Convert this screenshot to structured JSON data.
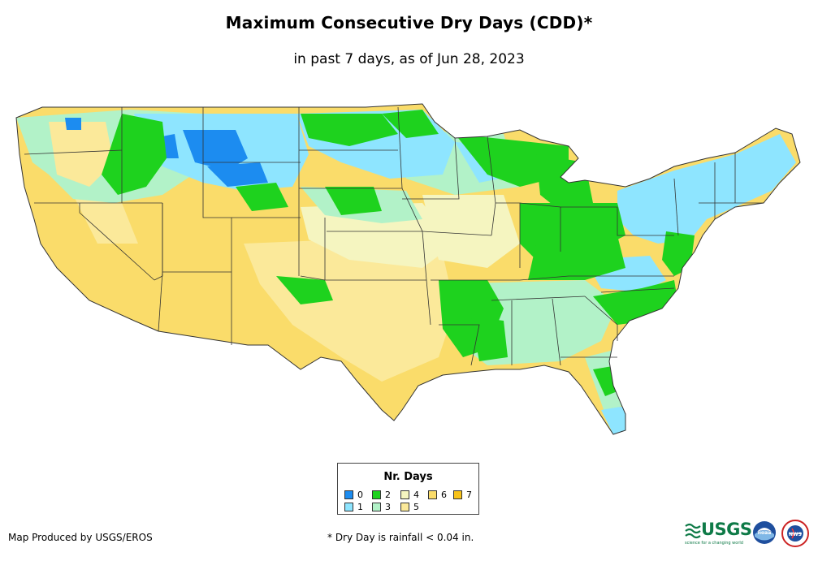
{
  "title": "Maximum Consecutive Dry Days (CDD)*",
  "subtitle": "in past 7 days, as of Jun 28, 2023",
  "legend": {
    "title": "Nr. Days",
    "items": [
      {
        "label": "0",
        "color": "#1c8cf0"
      },
      {
        "label": "1",
        "color": "#8ee5ff"
      },
      {
        "label": "2",
        "color": "#1ed21e"
      },
      {
        "label": "3",
        "color": "#b2f2c8"
      },
      {
        "label": "4",
        "color": "#f5f5c0"
      },
      {
        "label": "5",
        "color": "#fbe99a"
      },
      {
        "label": "6",
        "color": "#fadc6a"
      },
      {
        "label": "7",
        "color": "#f8c31a"
      }
    ]
  },
  "credit": "Map Produced by USGS/EROS",
  "footnote": "* Dry Day is rainfall < 0.04 in.",
  "logos": {
    "usgs": {
      "text": "≋USGS",
      "tagline": "science for a changing world"
    },
    "noaa": {
      "text": "noaa"
    },
    "nws": {
      "text": "NWS"
    }
  }
}
